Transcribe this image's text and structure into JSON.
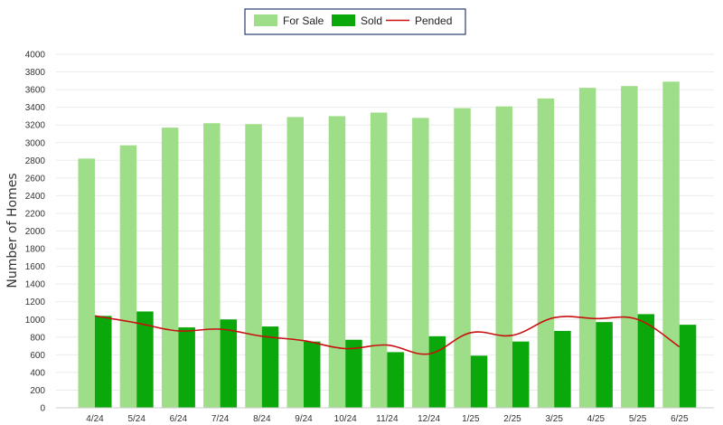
{
  "chart_data": {
    "type": "bar",
    "categories": [
      "4/24",
      "5/24",
      "6/24",
      "7/24",
      "8/24",
      "9/24",
      "10/24",
      "11/24",
      "12/24",
      "1/25",
      "2/25",
      "3/25",
      "4/25",
      "5/25",
      "6/25"
    ],
    "series": [
      {
        "name": "For Sale",
        "type": "bar",
        "color": "#9ede88",
        "values": [
          2820,
          2970,
          3170,
          3220,
          3210,
          3290,
          3300,
          3340,
          3280,
          3390,
          3410,
          3500,
          3620,
          3640,
          3690
        ]
      },
      {
        "name": "Sold",
        "type": "bar",
        "color": "#0aa80a",
        "values": [
          1040,
          1090,
          910,
          1000,
          920,
          750,
          770,
          630,
          810,
          590,
          750,
          870,
          970,
          1060,
          940
        ]
      },
      {
        "name": "Pended",
        "type": "line",
        "color": "#c81010",
        "values": [
          1040,
          960,
          870,
          890,
          810,
          760,
          670,
          710,
          610,
          850,
          820,
          1020,
          1010,
          1000,
          690
        ]
      }
    ],
    "ylabel": "Number of Homes",
    "ylim": [
      0,
      4000
    ],
    "yticks": [
      0,
      200,
      400,
      600,
      800,
      1000,
      1200,
      1400,
      1600,
      1800,
      2000,
      2200,
      2400,
      2600,
      2800,
      3000,
      3200,
      3400,
      3600,
      3800,
      4000
    ],
    "grid": true,
    "legend": "top-center"
  }
}
